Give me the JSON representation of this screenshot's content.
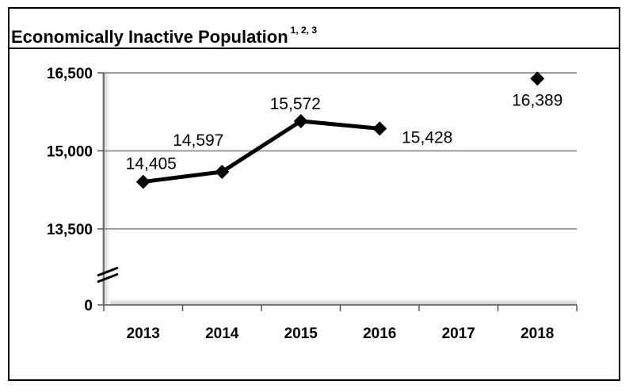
{
  "chart_data": {
    "type": "line",
    "title": "Economically Inactive Population",
    "title_superscript": "1, 2, 3",
    "categories": [
      "2013",
      "2014",
      "2015",
      "2016",
      "2017",
      "2018"
    ],
    "series": [
      {
        "values": [
          14405,
          14597,
          15572,
          15428,
          null,
          16389
        ],
        "data_labels": [
          "14,405",
          "14,597",
          "15,572",
          "15,428",
          "",
          "16,389"
        ],
        "marker": "diamond",
        "color": "#000000"
      }
    ],
    "y_ticks": [
      {
        "value": 16500,
        "label": "16,500"
      },
      {
        "value": 15000,
        "label": "15,000"
      },
      {
        "value": 13500,
        "label": "13,500"
      },
      {
        "value": 0,
        "label": "0"
      }
    ],
    "y_axis_break": true,
    "ylim": [
      0,
      16500
    ],
    "grid": true,
    "colors": {
      "line": "#000000",
      "grid": "#9e9e9e",
      "shadow": "#c8c8c8"
    }
  }
}
